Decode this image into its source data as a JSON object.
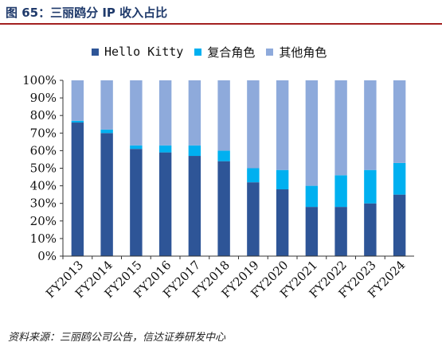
{
  "title": "图 65：三丽鸥分 IP 收入占比",
  "source": "资料来源：三丽鸥公司公告，信达证券研发中心",
  "colors": {
    "title": "#1f3a6b",
    "title_rule": "#a32020"
  },
  "chart_data": {
    "type": "bar",
    "stacked": true,
    "categories": [
      "FY2013",
      "FY2014",
      "FY2015",
      "FY2016",
      "FY2017",
      "FY2018",
      "FY2019",
      "FY2020",
      "FY2021",
      "FY2022",
      "FY2023",
      "FY2024"
    ],
    "series": [
      {
        "name": "Hello Kitty",
        "color": "#2e5597",
        "values": [
          76,
          70,
          61,
          59,
          57,
          54,
          42,
          38,
          28,
          28,
          30,
          35
        ]
      },
      {
        "name": "复合角色",
        "color": "#00b0f0",
        "values": [
          1,
          2,
          2,
          4,
          6,
          6,
          8,
          11,
          12,
          18,
          19,
          18
        ]
      },
      {
        "name": "其他角色",
        "color": "#8eaadb",
        "values": [
          23,
          28,
          37,
          37,
          37,
          40,
          50,
          51,
          60,
          54,
          51,
          47
        ]
      }
    ],
    "y_tick_labels": [
      "0%",
      "10%",
      "20%",
      "30%",
      "40%",
      "50%",
      "60%",
      "70%",
      "80%",
      "90%",
      "100%"
    ],
    "ylim": [
      0,
      100
    ],
    "grid": false,
    "legend_position": "top"
  }
}
